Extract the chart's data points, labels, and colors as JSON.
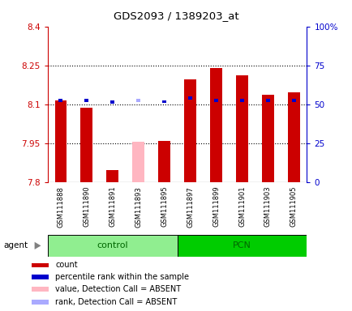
{
  "title": "GDS2093 / 1389203_at",
  "samples": [
    "GSM111888",
    "GSM111890",
    "GSM111891",
    "GSM111893",
    "GSM111895",
    "GSM111897",
    "GSM111899",
    "GSM111901",
    "GSM111903",
    "GSM111905"
  ],
  "groups": {
    "control": [
      0,
      1,
      2,
      3,
      4
    ],
    "PCN": [
      5,
      6,
      7,
      8,
      9
    ]
  },
  "ylim_left": [
    7.8,
    8.4
  ],
  "ylim_right": [
    0,
    100
  ],
  "yticks_left": [
    7.8,
    7.95,
    8.1,
    8.25,
    8.4
  ],
  "yticks_right": [
    0,
    25,
    50,
    75,
    100
  ],
  "hlines": [
    7.95,
    8.1,
    8.25
  ],
  "bar_base": 7.8,
  "count_values": [
    8.115,
    8.085,
    7.847,
    null,
    7.958,
    8.195,
    8.24,
    8.21,
    8.135,
    8.145
  ],
  "absent_value": 7.955,
  "absent_sample_idx": 3,
  "percentile_values": [
    8.115,
    8.115,
    8.108,
    null,
    8.11,
    8.125,
    8.115,
    8.115,
    8.115,
    8.115
  ],
  "absent_rank_value": 8.114,
  "absent_rank_sample_idx": 3,
  "bar_color_present": "#CC0000",
  "bar_color_absent": "#FFB6C1",
  "rank_color_present": "#0000CC",
  "rank_color_absent": "#AAAAFF",
  "group_control_color": "#90EE90",
  "group_pcn_color": "#00CC00",
  "group_label_color": "#006600",
  "tick_area_bg": "#D3D3D3",
  "left_axis_color": "#CC0000",
  "right_axis_color": "#0000CC",
  "dotted_line_color": "#000000",
  "legend_items": [
    "count",
    "percentile rank within the sample",
    "value, Detection Call = ABSENT",
    "rank, Detection Call = ABSENT"
  ],
  "legend_colors": [
    "#CC0000",
    "#0000CC",
    "#FFB6C1",
    "#AAAAFF"
  ]
}
